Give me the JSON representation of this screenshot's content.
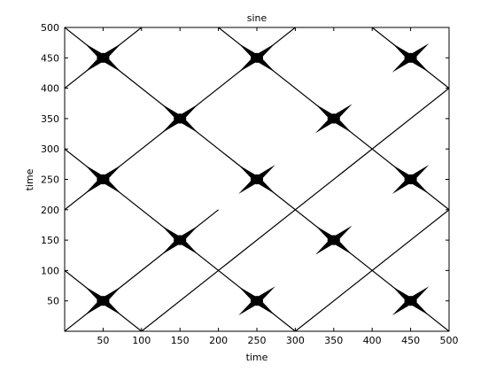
{
  "chart_data": {
    "type": "line",
    "title": "sine",
    "xlabel": "time",
    "ylabel": "time",
    "xlim": [
      0,
      500
    ],
    "ylim": [
      0,
      500
    ],
    "x_ticks": [
      50,
      100,
      150,
      200,
      250,
      300,
      350,
      400,
      450,
      500
    ],
    "y_ticks": [
      50,
      100,
      150,
      200,
      250,
      300,
      350,
      400,
      450,
      500
    ],
    "grid": false,
    "line_color": "#000000",
    "series": [
      {
        "x": [
          0,
          200
        ],
        "y": [
          0,
          200
        ]
      },
      {
        "x": [
          0,
          400
        ],
        "y": [
          200,
          600
        ]
      },
      {
        "x": [
          0,
          100
        ],
        "y": [
          400,
          500
        ]
      },
      {
        "x": [
          100,
          500
        ],
        "y": [
          0,
          400
        ]
      },
      {
        "x": [
          300,
          500
        ],
        "y": [
          0,
          200
        ]
      },
      {
        "x": [
          0,
          100
        ],
        "y": [
          100,
          0
        ]
      },
      {
        "x": [
          0,
          300
        ],
        "y": [
          300,
          0
        ]
      },
      {
        "x": [
          0,
          500
        ],
        "y": [
          500,
          0
        ]
      },
      {
        "x": [
          200,
          500
        ],
        "y": [
          500,
          200
        ]
      },
      {
        "x": [
          400,
          500
        ],
        "y": [
          500,
          400
        ]
      }
    ],
    "crossings": [
      {
        "x": 50,
        "y": 50
      },
      {
        "x": 250,
        "y": 50
      },
      {
        "x": 450,
        "y": 50
      },
      {
        "x": 150,
        "y": 150
      },
      {
        "x": 350,
        "y": 150
      },
      {
        "x": 50,
        "y": 250
      },
      {
        "x": 250,
        "y": 250
      },
      {
        "x": 450,
        "y": 250
      },
      {
        "x": 150,
        "y": 350
      },
      {
        "x": 350,
        "y": 350
      },
      {
        "x": 50,
        "y": 450
      },
      {
        "x": 250,
        "y": 450
      },
      {
        "x": 450,
        "y": 450
      }
    ]
  }
}
